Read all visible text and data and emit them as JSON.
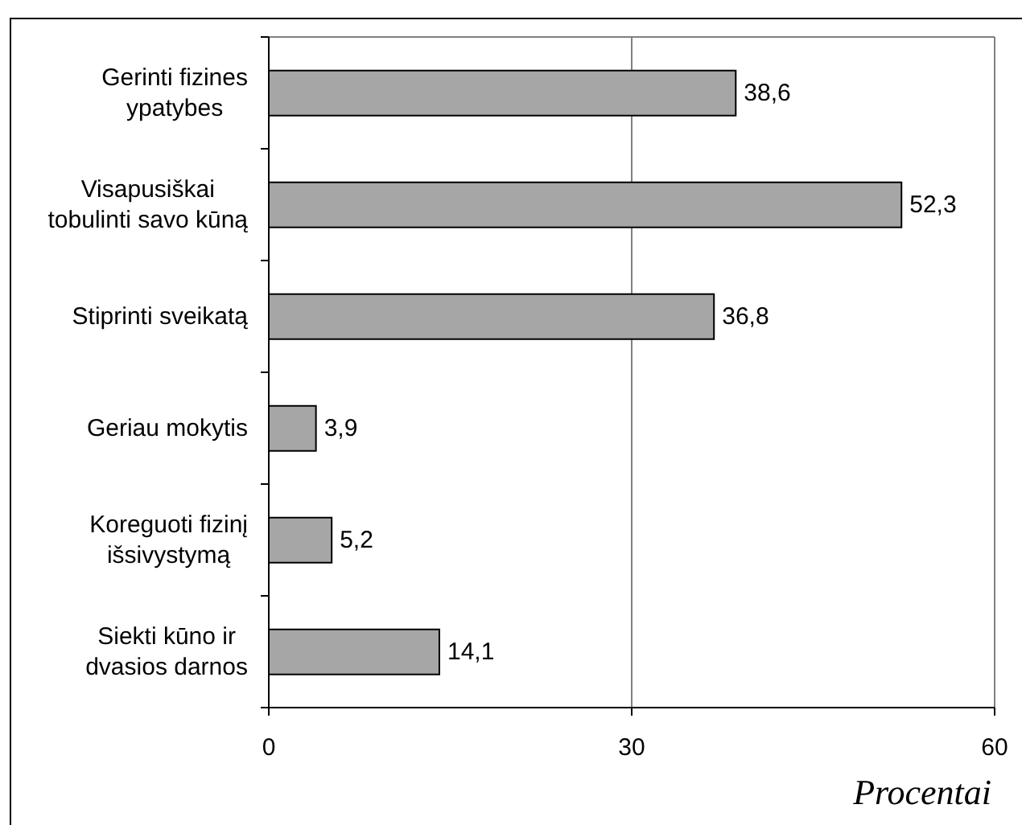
{
  "chart_data": {
    "type": "bar",
    "orientation": "horizontal",
    "categories": [
      "Gerinti fizines ypatybes",
      "Visapusiškai tobulinti savo kūną",
      "Stiprinti sveikatą",
      "Geriau mokytis",
      "Koreguoti fizinį išsivystymą",
      "Siekti kūno ir dvasios darnos"
    ],
    "values": [
      38.6,
      52.3,
      36.8,
      3.9,
      5.2,
      14.1
    ],
    "value_labels": [
      "38,6",
      "52,3",
      "36,8",
      "3,9",
      "5,2",
      "14,1"
    ],
    "color": "#a6a6a6",
    "xlabel": "Procentai",
    "xlim": [
      0,
      60
    ],
    "xticks": [
      0,
      30,
      60
    ],
    "grid": "x"
  }
}
